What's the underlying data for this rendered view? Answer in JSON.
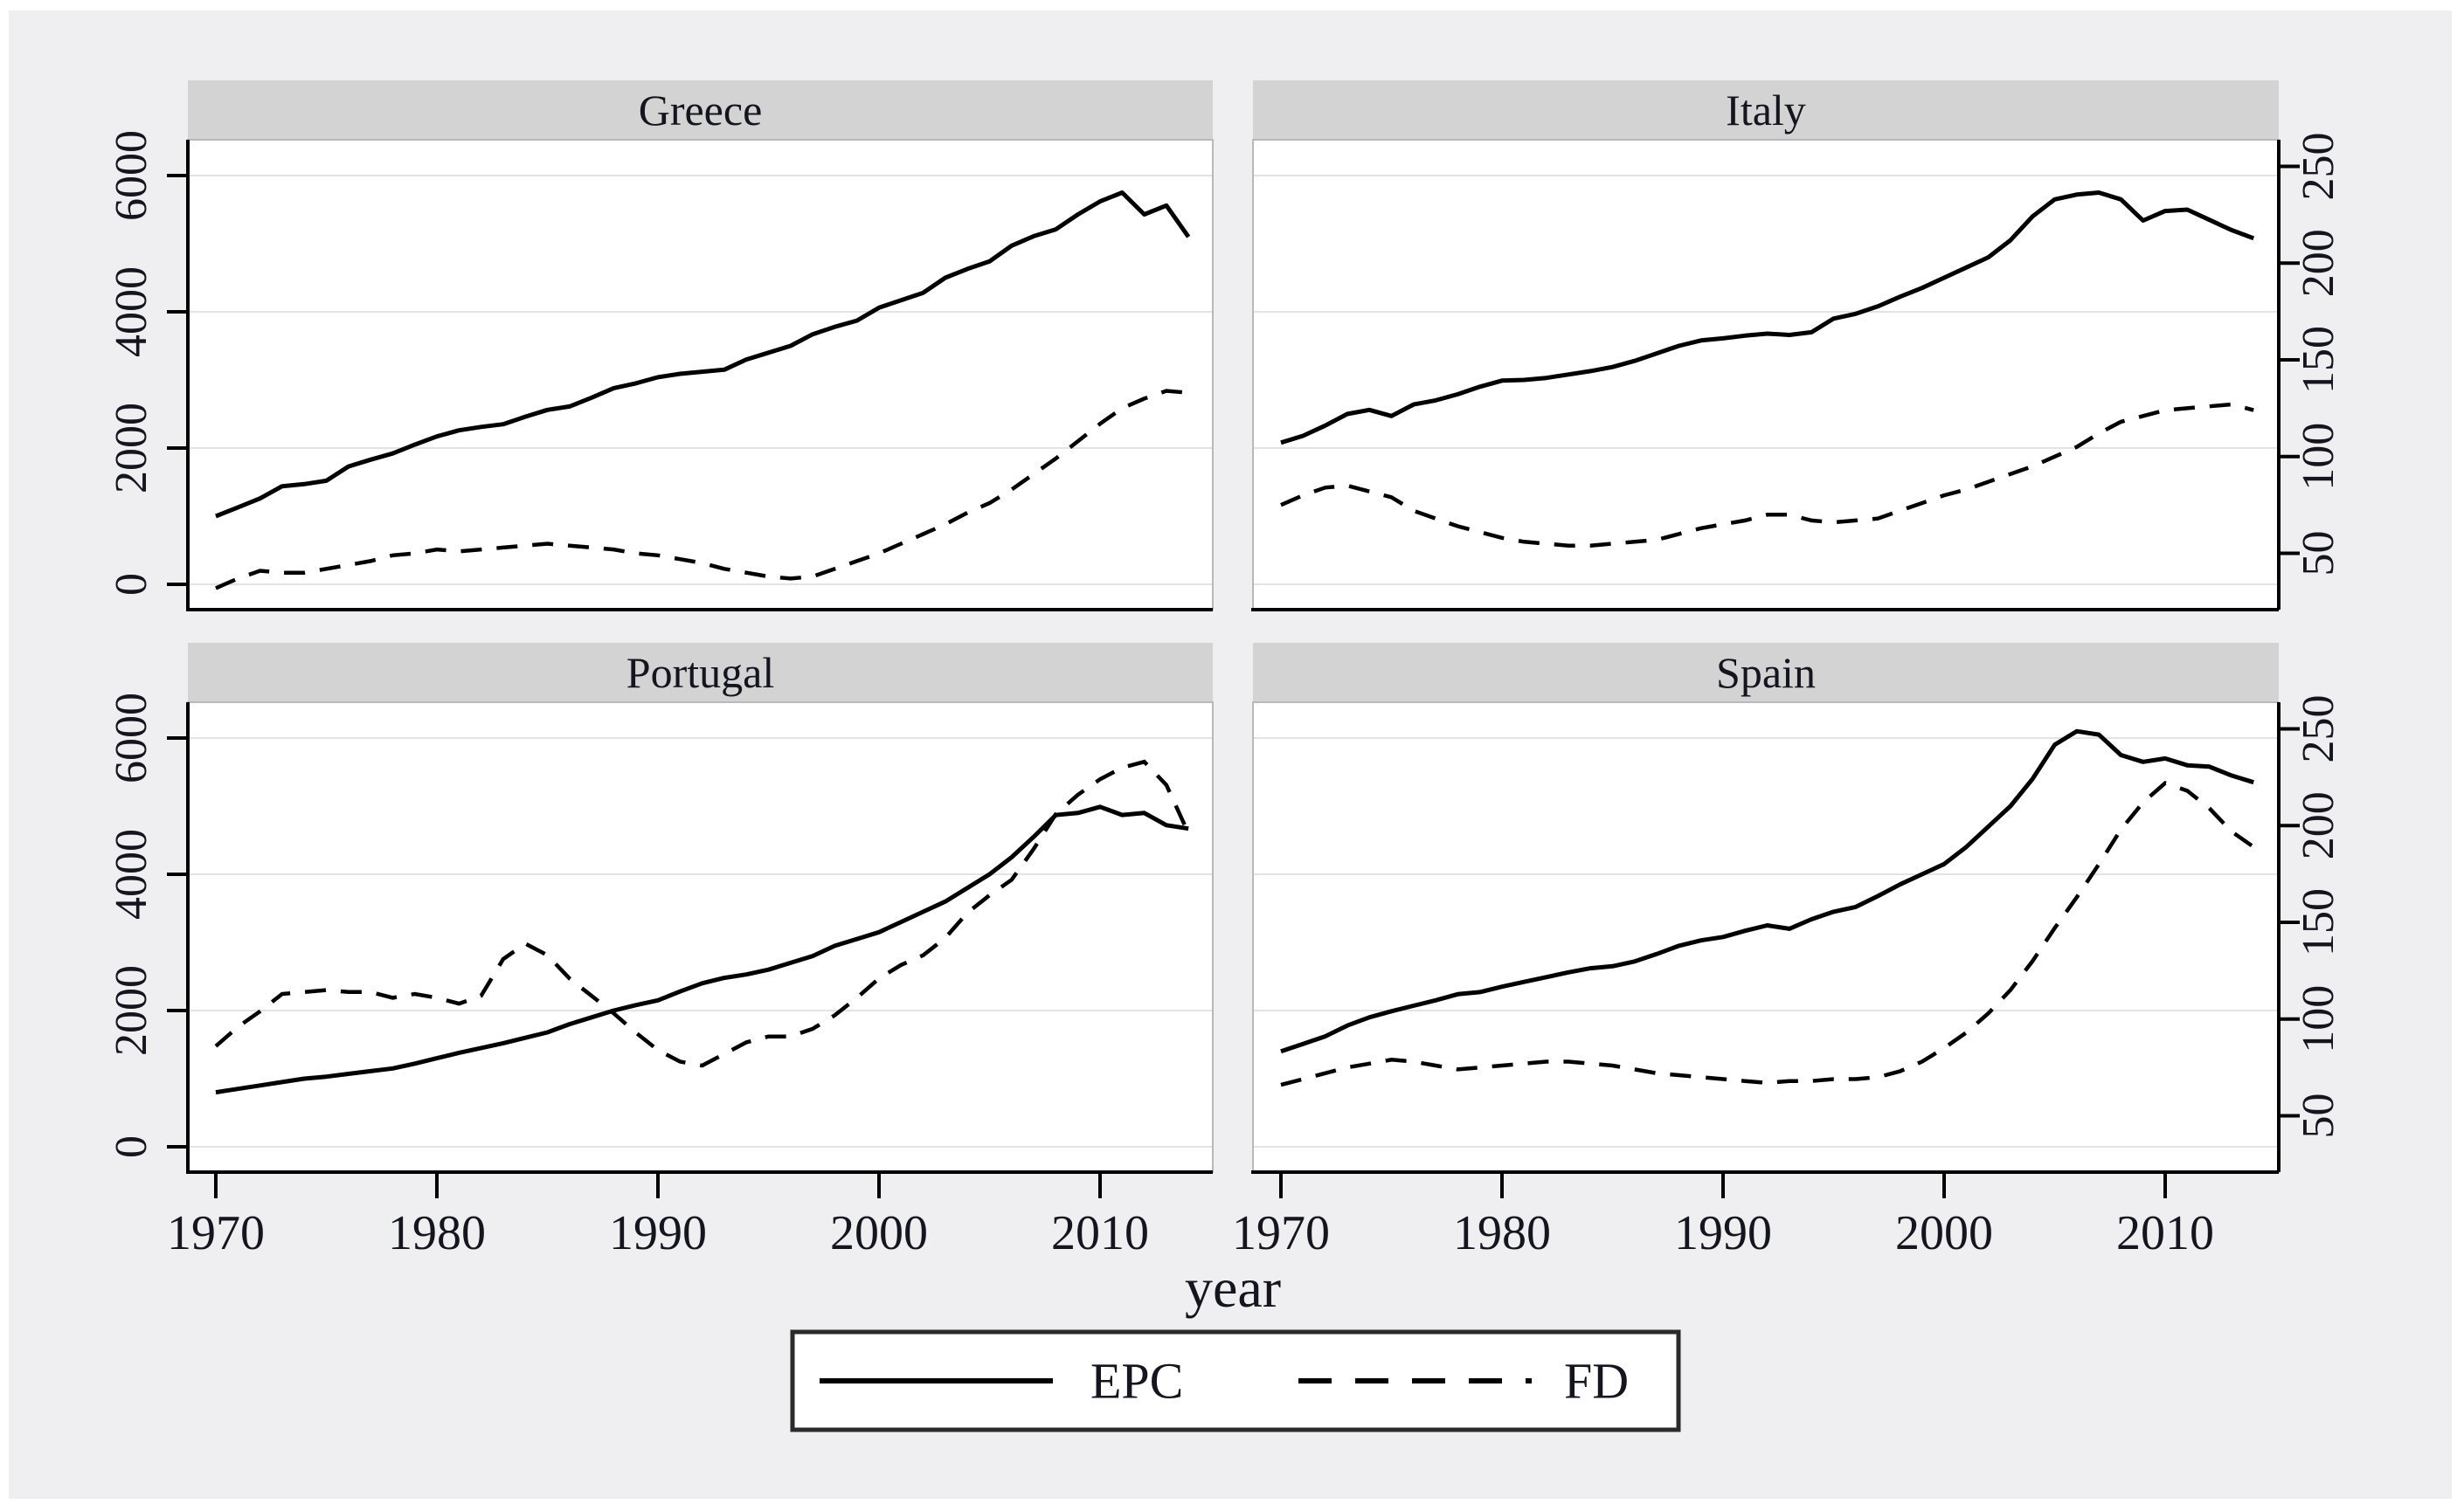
{
  "chart_data": {
    "type": "line",
    "layout": "2x2 small multiples (Stata by-graph)",
    "xlabel": "year",
    "x_ticks": [
      1970,
      1980,
      1990,
      2000,
      2010
    ],
    "years": [
      1970,
      1971,
      1972,
      1973,
      1974,
      1975,
      1976,
      1977,
      1978,
      1979,
      1980,
      1981,
      1982,
      1983,
      1984,
      1985,
      1986,
      1987,
      1988,
      1989,
      1990,
      1991,
      1992,
      1993,
      1994,
      1995,
      1996,
      1997,
      1998,
      1999,
      2000,
      2001,
      2002,
      2003,
      2004,
      2005,
      2006,
      2007,
      2008,
      2009,
      2010,
      2011,
      2012,
      2013,
      2014
    ],
    "left_axis": {
      "ticks": [
        0,
        2000,
        4000,
        6000
      ],
      "applies_to": "EPC",
      "side": "left"
    },
    "right_axis": {
      "ticks": [
        50,
        100,
        150,
        200,
        250
      ],
      "applies_to": "FD",
      "side": "right"
    },
    "legend": [
      {
        "label": "EPC",
        "style": "solid"
      },
      {
        "label": "FD",
        "style": "dashed"
      }
    ],
    "panels": [
      {
        "title": "Greece",
        "epc": [
          1000,
          1130,
          1260,
          1440,
          1470,
          1520,
          1730,
          1830,
          1920,
          2050,
          2170,
          2260,
          2310,
          2350,
          2460,
          2560,
          2610,
          2740,
          2880,
          2950,
          3040,
          3090,
          3120,
          3150,
          3300,
          3400,
          3500,
          3670,
          3780,
          3870,
          4060,
          4170,
          4280,
          4500,
          4630,
          4740,
          4970,
          5110,
          5210,
          5430,
          5620,
          5750,
          5430,
          5560,
          5100
        ],
        "fd": [
          32,
          37,
          41,
          40,
          40,
          42,
          44,
          46,
          49,
          50,
          52,
          51,
          52,
          53,
          54,
          55,
          54,
          53,
          52,
          50,
          49,
          47,
          45,
          42,
          40,
          38,
          37,
          38,
          42,
          46,
          50,
          55,
          60,
          65,
          71,
          76,
          83,
          91,
          99,
          108,
          117,
          125,
          130,
          134,
          133
        ]
      },
      {
        "title": "Italy",
        "epc": [
          2080,
          2180,
          2330,
          2500,
          2560,
          2470,
          2640,
          2700,
          2790,
          2900,
          2990,
          3000,
          3030,
          3080,
          3130,
          3190,
          3280,
          3390,
          3500,
          3580,
          3610,
          3650,
          3680,
          3660,
          3700,
          3900,
          3970,
          4080,
          4220,
          4350,
          4500,
          4650,
          4800,
          5050,
          5400,
          5650,
          5720,
          5750,
          5650,
          5340,
          5480,
          5500,
          5350,
          5200,
          5080
        ],
        "fd": [
          75,
          80,
          84,
          85,
          82,
          79,
          72,
          68,
          64,
          61,
          58,
          56,
          55,
          54,
          54,
          55,
          56,
          57,
          60,
          63,
          65,
          67,
          70,
          70,
          67,
          66,
          67,
          68,
          72,
          76,
          80,
          83,
          87,
          91,
          95,
          100,
          105,
          112,
          118,
          121,
          124,
          125,
          126,
          127,
          124
        ]
      },
      {
        "title": "Portugal",
        "epc": [
          800,
          850,
          900,
          950,
          1000,
          1030,
          1070,
          1110,
          1150,
          1220,
          1300,
          1380,
          1450,
          1520,
          1600,
          1680,
          1800,
          1900,
          2000,
          2080,
          2150,
          2280,
          2400,
          2480,
          2530,
          2600,
          2700,
          2800,
          2950,
          3050,
          3150,
          3300,
          3450,
          3600,
          3800,
          4000,
          4250,
          4550,
          4870,
          4900,
          4990,
          4870,
          4900,
          4720,
          4670
        ],
        "fd": [
          86,
          96,
          104,
          113,
          114,
          115,
          114,
          114,
          111,
          113,
          111,
          108,
          112,
          131,
          139,
          133,
          121,
          112,
          103,
          93,
          84,
          78,
          76,
          82,
          88,
          91,
          91,
          95,
          102,
          111,
          121,
          128,
          133,
          142,
          155,
          164,
          172,
          188,
          206,
          216,
          224,
          230,
          233,
          221,
          196
        ]
      },
      {
        "title": "Spain",
        "epc": [
          1400,
          1510,
          1620,
          1780,
          1900,
          1990,
          2070,
          2150,
          2240,
          2270,
          2350,
          2420,
          2490,
          2560,
          2620,
          2650,
          2720,
          2830,
          2950,
          3030,
          3080,
          3170,
          3250,
          3200,
          3340,
          3450,
          3520,
          3680,
          3850,
          4000,
          4150,
          4400,
          4700,
          5000,
          5400,
          5900,
          6100,
          6050,
          5750,
          5650,
          5700,
          5600,
          5580,
          5450,
          5350
        ],
        "fd": [
          66,
          69,
          72,
          75,
          77,
          79,
          78,
          76,
          74,
          75,
          76,
          77,
          78,
          78,
          77,
          76,
          74,
          72,
          71,
          70,
          69,
          68,
          67,
          68,
          68,
          69,
          69,
          70,
          73,
          78,
          85,
          93,
          103,
          115,
          130,
          147,
          163,
          180,
          198,
          212,
          222,
          218,
          209,
          197,
          189
        ]
      }
    ]
  },
  "colors": {
    "page_background": "#ffffff",
    "figure_background": "#efeff1",
    "header_band": "#d3d3d3",
    "plot_background": "#ffffff",
    "gridline": "#e3e3e5",
    "plot_border": "#b9b9bb",
    "axis": "#000000",
    "series": "#000000",
    "text": "#15151f"
  }
}
